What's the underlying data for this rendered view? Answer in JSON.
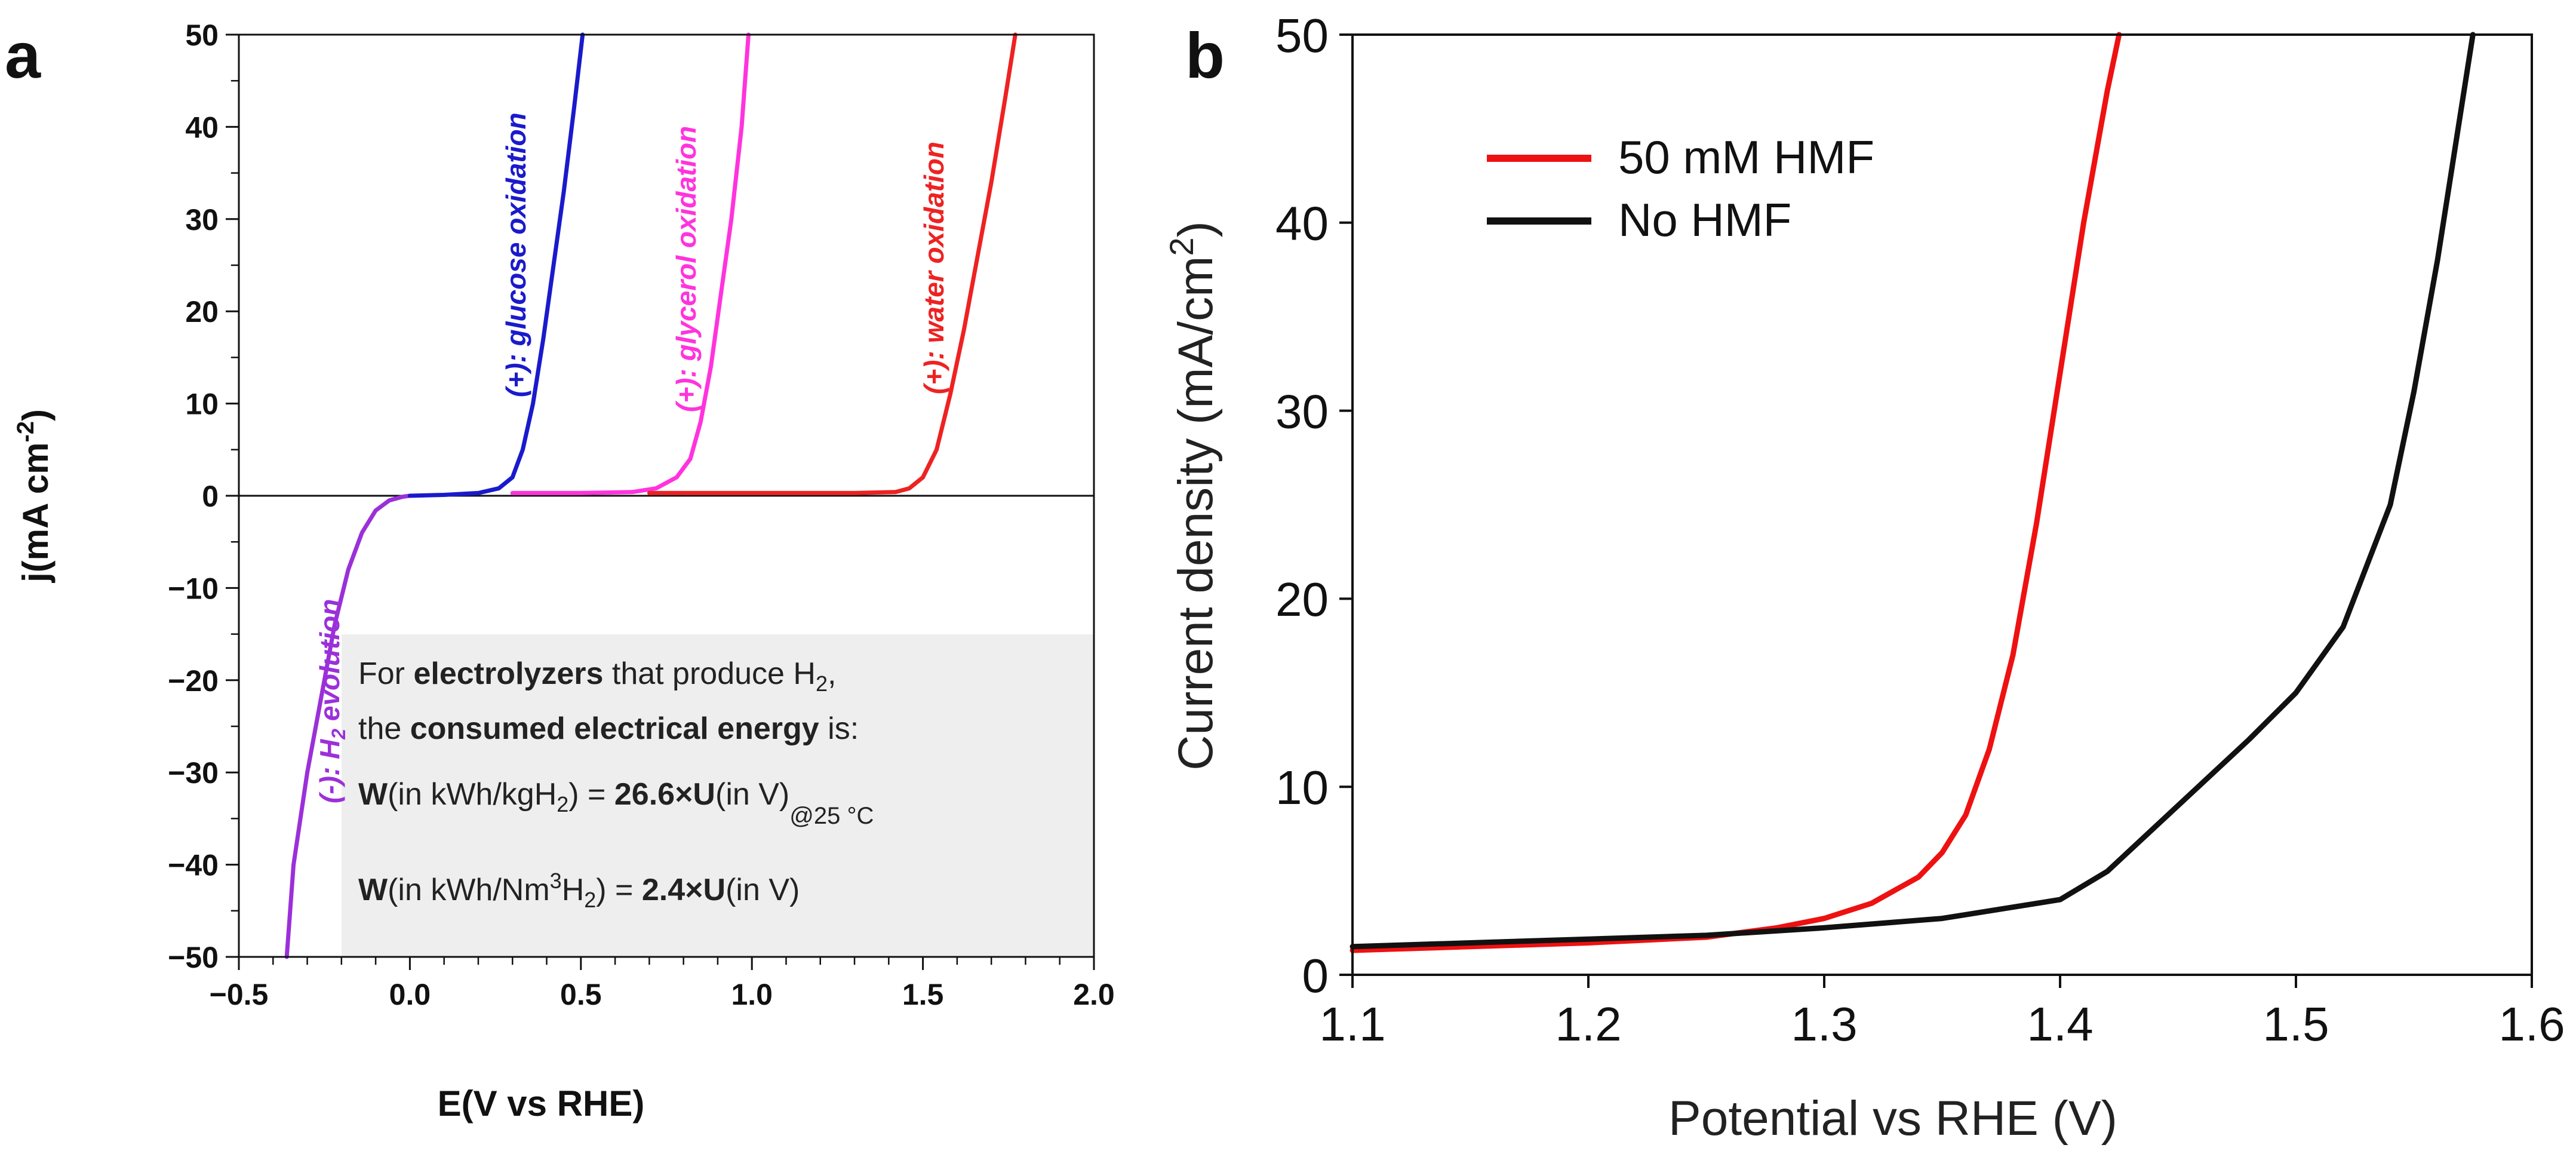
{
  "chart_data": [
    {
      "panel": "a",
      "type": "line",
      "xlabel": "E(V vs RHE)",
      "ylabel": "j(mA cm",
      "ylabel_sup": "-2",
      "ylabel_close": ")",
      "xlim": [
        -0.5,
        2.0
      ],
      "ylim": [
        -50,
        50
      ],
      "x_ticks": [
        -0.5,
        0.0,
        0.5,
        1.0,
        1.5,
        2.0
      ],
      "x_tick_labels": [
        "−0.5",
        "0.0",
        "0.5",
        "1.0",
        "1.5",
        "2.0"
      ],
      "y_ticks": [
        50,
        40,
        30,
        20,
        10,
        0,
        -10,
        -20,
        -30,
        -40,
        -50
      ],
      "y_tick_labels": [
        "50",
        "40",
        "30",
        "20",
        "10",
        "0",
        "−10",
        "−20",
        "−30",
        "−40",
        "−50"
      ],
      "zero_line": true,
      "grid": false,
      "series": [
        {
          "name": "(-): H2 evolution",
          "color": "#9b30d9",
          "x": [
            -0.36,
            -0.34,
            -0.3,
            -0.26,
            -0.22,
            -0.18,
            -0.14,
            -0.1,
            -0.06,
            -0.02,
            0.0
          ],
          "y": [
            -50,
            -40,
            -30,
            -22,
            -14,
            -8,
            -4,
            -1.6,
            -0.5,
            -0.1,
            0
          ]
        },
        {
          "name": "(+): glucose oxidation",
          "color": "#1a1acc",
          "x": [
            0.0,
            0.1,
            0.2,
            0.26,
            0.3,
            0.33,
            0.36,
            0.39,
            0.42,
            0.45,
            0.48,
            0.505
          ],
          "y": [
            0,
            0.1,
            0.3,
            0.8,
            2,
            5,
            10,
            17,
            25,
            33,
            42,
            50
          ]
        },
        {
          "name": "(+): glycerol oxidation",
          "color": "#ff33dd",
          "x": [
            0.3,
            0.5,
            0.65,
            0.72,
            0.78,
            0.82,
            0.85,
            0.88,
            0.91,
            0.94,
            0.97,
            0.99
          ],
          "y": [
            0.3,
            0.3,
            0.4,
            0.8,
            2,
            4,
            8,
            14,
            22,
            30,
            40,
            50
          ]
        },
        {
          "name": "(+): water oxidation",
          "color": "#ee2222",
          "x": [
            0.7,
            1.0,
            1.3,
            1.42,
            1.46,
            1.5,
            1.54,
            1.58,
            1.62,
            1.66,
            1.7,
            1.74,
            1.77
          ],
          "y": [
            0.3,
            0.3,
            0.3,
            0.4,
            0.8,
            2,
            5,
            11,
            18,
            26,
            34,
            43,
            50
          ]
        }
      ],
      "annotations": {
        "h2": {
          "pre": "(-): H",
          "sub": "2",
          "post": " evolution"
        },
        "glucose": "(+): glucose oxidation",
        "glycerol": "(+): glycerol oxidation",
        "water": "(+): water oxidation"
      },
      "info_box": {
        "line1_pre": "For ",
        "line1_bold": "electrolyzers",
        "line1_mid": " that produce H",
        "line1_sub": "2",
        "line1_end": ",",
        "line2_pre": "the ",
        "line2_bold": "consumed electrical energy",
        "line2_end": " is:",
        "line3_w": "W",
        "line3_a": "(in kWh/kgH",
        "line3_sub": "2",
        "line3_b": ") = ",
        "line3_bold": "26.6×U",
        "line3_c": "(in V)",
        "line3_cond": "@25 °C",
        "line4_w": "W",
        "line4_a": "(in kWh/Nm",
        "line4_sup": "3",
        "line4_b": "H",
        "line4_sub": "2",
        "line4_c": ") = ",
        "line4_bold": "2.4×U",
        "line4_d": "(in V)"
      }
    },
    {
      "panel": "b",
      "type": "line",
      "xlabel": "Potential vs RHE (V)",
      "ylabel": "Current density (mA/cm",
      "ylabel_sup": "2",
      "ylabel_close": ")",
      "xlim": [
        1.1,
        1.6
      ],
      "ylim": [
        0,
        50
      ],
      "x_ticks": [
        1.1,
        1.2,
        1.3,
        1.4,
        1.5,
        1.6
      ],
      "x_tick_labels": [
        "1.1",
        "1.2",
        "1.3",
        "1.4",
        "1.5",
        "1.6"
      ],
      "y_ticks": [
        0,
        10,
        20,
        30,
        40,
        50
      ],
      "y_tick_labels": [
        "0",
        "10",
        "20",
        "30",
        "40",
        "50"
      ],
      "grid": false,
      "legend_position": "top-left",
      "series": [
        {
          "name": "50 mM HMF",
          "color": "#ee1111",
          "x": [
            1.1,
            1.15,
            1.2,
            1.25,
            1.28,
            1.3,
            1.32,
            1.34,
            1.35,
            1.36,
            1.37,
            1.38,
            1.39,
            1.4,
            1.41,
            1.42,
            1.425
          ],
          "y": [
            1.3,
            1.5,
            1.7,
            2.0,
            2.5,
            3.0,
            3.8,
            5.2,
            6.5,
            8.5,
            12,
            17,
            24,
            32,
            40,
            47,
            50
          ]
        },
        {
          "name": "No HMF",
          "color": "#111111",
          "x": [
            1.1,
            1.15,
            1.2,
            1.25,
            1.3,
            1.35,
            1.4,
            1.42,
            1.45,
            1.48,
            1.5,
            1.52,
            1.54,
            1.55,
            1.56,
            1.57,
            1.575
          ],
          "y": [
            1.5,
            1.7,
            1.9,
            2.1,
            2.5,
            3.0,
            4.0,
            5.5,
            9.0,
            12.5,
            15.0,
            18.5,
            25,
            31,
            38,
            46,
            50
          ]
        }
      ]
    }
  ],
  "panel_labels": {
    "a": "a",
    "b": "b"
  }
}
